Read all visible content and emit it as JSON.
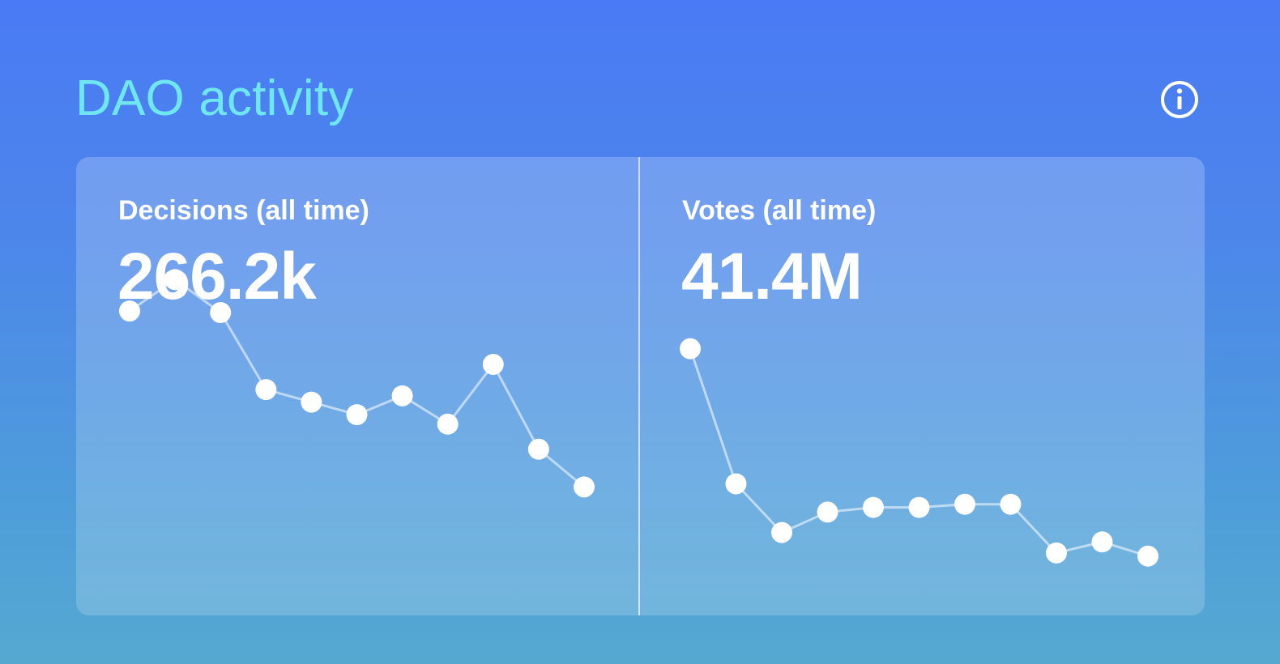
{
  "header": {
    "title": "DAO activity",
    "info_icon": "info-circle-icon"
  },
  "colors": {
    "title": "#6ee7f0",
    "text": "#ffffff",
    "line": "rgba(255,255,255,0.55)",
    "point": "#ffffff"
  },
  "stats": [
    {
      "label": "Decisions (all time)",
      "value": "266.2k"
    },
    {
      "label": "Votes (all time)",
      "value": "41.4M"
    }
  ],
  "chart_data": [
    {
      "type": "line",
      "title": "Decisions (all time)",
      "x": [
        1,
        2,
        3,
        4,
        5,
        6,
        7,
        8,
        9,
        10,
        11
      ],
      "series": [
        {
          "values": [
            84,
            94,
            83.5,
            59,
            55,
            51,
            57,
            48,
            67,
            40,
            28
          ]
        }
      ],
      "ylim": [
        0,
        100
      ],
      "grid": false,
      "axes_visible": false
    },
    {
      "type": "line",
      "title": "Votes (all time)",
      "x": [
        1,
        2,
        3,
        4,
        5,
        6,
        7,
        8,
        9,
        10,
        11
      ],
      "series": [
        {
          "values": [
            72,
            29,
            13.5,
            20,
            21.5,
            21.5,
            22.5,
            22.5,
            7,
            10.5,
            6
          ]
        }
      ],
      "ylim": [
        0,
        100
      ],
      "grid": false,
      "axes_visible": false
    }
  ]
}
